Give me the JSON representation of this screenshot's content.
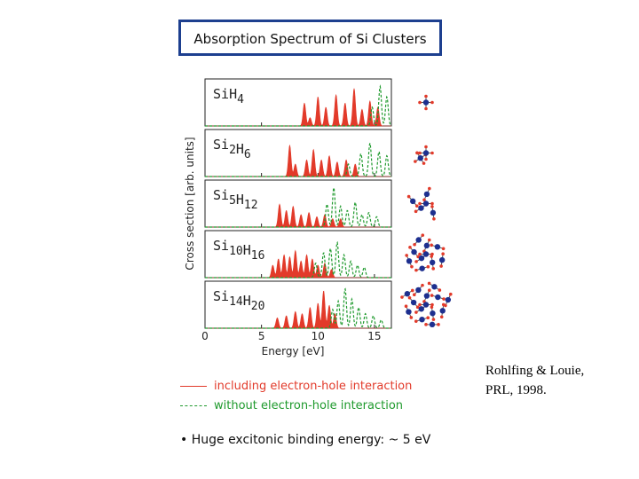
{
  "title": "Absorption Spectrum of Si Clusters",
  "legend": {
    "with_eh": "including electron-hole interaction",
    "without_eh": "without electron-hole interaction",
    "with_eh_color": "#e23a2a",
    "without_eh_color": "#1f9a2d"
  },
  "note": {
    "bullet": "•",
    "text": "Huge excitonic binding energy:  ~ 5 eV"
  },
  "citation": {
    "line1": "Rohlfing & Louie,",
    "line2": "PRL, 1998."
  },
  "chart_data": {
    "type": "line",
    "xlabel": "Energy [eV]",
    "ylabel": "Cross section [arb. units]",
    "xlim": [
      0,
      16.5
    ],
    "xticks": [
      0,
      5,
      10,
      15
    ],
    "panels": [
      {
        "cluster": "SiH4",
        "label_parts": [
          {
            "t": "Si",
            "sub": false
          },
          {
            "t": "H",
            "sub": false
          },
          {
            "t": "4",
            "sub": true
          }
        ],
        "with_eh_peaks": [
          [
            8.8,
            0.55
          ],
          [
            9.3,
            0.2
          ],
          [
            10.0,
            0.7
          ],
          [
            10.7,
            0.45
          ],
          [
            11.6,
            0.75
          ],
          [
            12.4,
            0.55
          ],
          [
            13.2,
            0.9
          ],
          [
            13.9,
            0.4
          ],
          [
            14.6,
            0.6
          ],
          [
            15.3,
            0.45
          ]
        ],
        "without_eh_peaks": [
          [
            14.8,
            0.45
          ],
          [
            15.5,
            0.95
          ],
          [
            16.1,
            0.7
          ]
        ]
      },
      {
        "cluster": "Si2H6",
        "label_parts": [
          {
            "t": "Si",
            "sub": false
          },
          {
            "t": "2",
            "sub": true
          },
          {
            "t": "H",
            "sub": false
          },
          {
            "t": "6",
            "sub": true
          }
        ],
        "with_eh_peaks": [
          [
            7.5,
            0.75
          ],
          [
            8.0,
            0.3
          ],
          [
            9.0,
            0.4
          ],
          [
            9.6,
            0.65
          ],
          [
            10.3,
            0.4
          ],
          [
            11.0,
            0.5
          ],
          [
            11.7,
            0.35
          ],
          [
            12.5,
            0.4
          ],
          [
            13.3,
            0.3
          ]
        ],
        "without_eh_peaks": [
          [
            12.7,
            0.3
          ],
          [
            13.8,
            0.55
          ],
          [
            14.6,
            0.8
          ],
          [
            15.4,
            0.6
          ],
          [
            16.1,
            0.5
          ]
        ]
      },
      {
        "cluster": "Si5H12",
        "label_parts": [
          {
            "t": "Si",
            "sub": false
          },
          {
            "t": "5",
            "sub": true
          },
          {
            "t": "H",
            "sub": false
          },
          {
            "t": "12",
            "sub": true
          }
        ],
        "with_eh_peaks": [
          [
            6.6,
            0.55
          ],
          [
            7.2,
            0.4
          ],
          [
            7.8,
            0.5
          ],
          [
            8.5,
            0.3
          ],
          [
            9.2,
            0.35
          ],
          [
            9.9,
            0.25
          ],
          [
            10.6,
            0.3
          ],
          [
            11.3,
            0.2
          ],
          [
            12.0,
            0.2
          ]
        ],
        "without_eh_peaks": [
          [
            10.8,
            0.55
          ],
          [
            11.4,
            0.95
          ],
          [
            12.0,
            0.5
          ],
          [
            12.6,
            0.4
          ],
          [
            13.3,
            0.6
          ],
          [
            13.9,
            0.3
          ],
          [
            14.5,
            0.35
          ],
          [
            15.2,
            0.25
          ]
        ]
      },
      {
        "cluster": "Si10H16",
        "label_parts": [
          {
            "t": "Si",
            "sub": false
          },
          {
            "t": "10",
            "sub": true
          },
          {
            "t": "H",
            "sub": false
          },
          {
            "t": "16",
            "sub": true
          }
        ],
        "with_eh_peaks": [
          [
            6.0,
            0.3
          ],
          [
            6.5,
            0.45
          ],
          [
            7.0,
            0.55
          ],
          [
            7.5,
            0.5
          ],
          [
            8.0,
            0.65
          ],
          [
            8.5,
            0.4
          ],
          [
            9.0,
            0.55
          ],
          [
            9.5,
            0.45
          ],
          [
            10.0,
            0.3
          ],
          [
            10.6,
            0.35
          ],
          [
            11.2,
            0.2
          ]
        ],
        "without_eh_peaks": [
          [
            9.8,
            0.35
          ],
          [
            10.5,
            0.6
          ],
          [
            11.1,
            0.7
          ],
          [
            11.7,
            0.85
          ],
          [
            12.3,
            0.55
          ],
          [
            12.9,
            0.4
          ],
          [
            13.5,
            0.3
          ],
          [
            14.1,
            0.25
          ]
        ]
      },
      {
        "cluster": "Si14H20",
        "label_parts": [
          {
            "t": "Si",
            "sub": false
          },
          {
            "t": "14",
            "sub": true
          },
          {
            "t": "H",
            "sub": false
          },
          {
            "t": "20",
            "sub": true
          }
        ],
        "with_eh_peaks": [
          [
            6.4,
            0.25
          ],
          [
            7.2,
            0.3
          ],
          [
            8.0,
            0.4
          ],
          [
            8.6,
            0.35
          ],
          [
            9.3,
            0.5
          ],
          [
            10.0,
            0.6
          ],
          [
            10.5,
            0.9
          ],
          [
            11.0,
            0.55
          ],
          [
            11.5,
            0.35
          ]
        ],
        "without_eh_peaks": [
          [
            11.3,
            0.45
          ],
          [
            11.8,
            0.65
          ],
          [
            12.4,
            0.95
          ],
          [
            13.0,
            0.7
          ],
          [
            13.6,
            0.5
          ],
          [
            14.2,
            0.35
          ],
          [
            14.9,
            0.3
          ],
          [
            15.6,
            0.2
          ]
        ]
      }
    ]
  }
}
